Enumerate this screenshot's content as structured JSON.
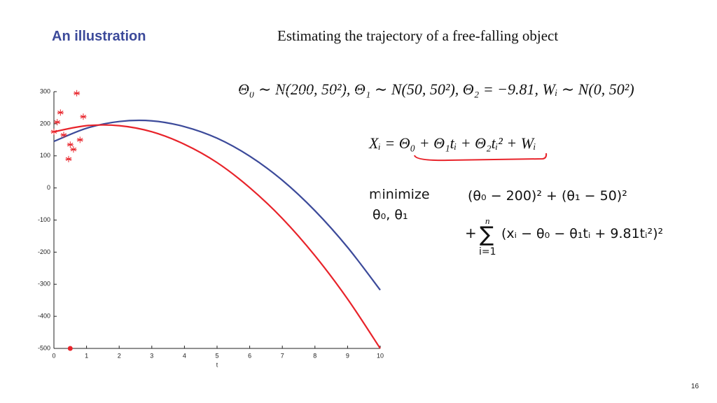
{
  "header": {
    "title": "An illustration",
    "subtitle": "Estimating the trajectory of a free-falling object"
  },
  "equations": {
    "priors": "Θ₀ ∼ N(200, 50²), Θ₁ ∼ N(50, 50²), Θ₂ = −9.81, Wᵢ ∼ N(0, 50²)",
    "model": "Xᵢ = Θ₀ + Θ₁tᵢ + Θ₂tᵢ² + Wᵢ",
    "minimize": "minimize",
    "variables": "θ₀, θ₁",
    "objective_1": "(θ₀ − 200)² + (θ₁ − 50)²",
    "plus": "+",
    "sum": "∑",
    "sum_upper": "n",
    "sum_lower": "i=1",
    "objective_2": "(xᵢ − θ₀ − θ₁tᵢ + 9.81tᵢ²)²"
  },
  "page_number": "16",
  "chart_data": {
    "type": "line",
    "x_label": "t",
    "x": [
      0,
      1,
      2,
      3,
      4,
      5,
      6,
      7,
      8,
      9,
      10
    ],
    "series": [
      {
        "type": "line",
        "color": "#3c4a9a",
        "values": [
          145,
          186,
          207,
          209,
          191,
          155,
          99,
          24,
          -71,
          -185,
          -318
        ]
      },
      {
        "type": "line",
        "color": "#e8232a",
        "values": [
          175,
          194,
          194,
          175,
          136,
          79,
          1,
          -95,
          -211,
          -346,
          -500
        ]
      },
      {
        "type": "scatter",
        "marker": "asterisk",
        "color": "#e8232a",
        "x": [
          0.0,
          0.1,
          0.2,
          0.3,
          0.45,
          0.5,
          0.6,
          0.7,
          0.8,
          0.9
        ],
        "values": [
          175,
          205,
          235,
          165,
          90,
          135,
          120,
          295,
          150,
          222
        ]
      },
      {
        "type": "scatter",
        "marker": "dot",
        "color": "#e8232a",
        "x": [
          0.5
        ],
        "values": [
          -500
        ]
      }
    ],
    "xlim": [
      0,
      10
    ],
    "ylim": [
      -500,
      300
    ],
    "xticks": [
      0,
      1,
      2,
      3,
      4,
      5,
      6,
      7,
      8,
      9,
      10
    ],
    "yticks": [
      -500,
      -400,
      -300,
      -200,
      -100,
      0,
      100,
      200,
      300
    ]
  }
}
